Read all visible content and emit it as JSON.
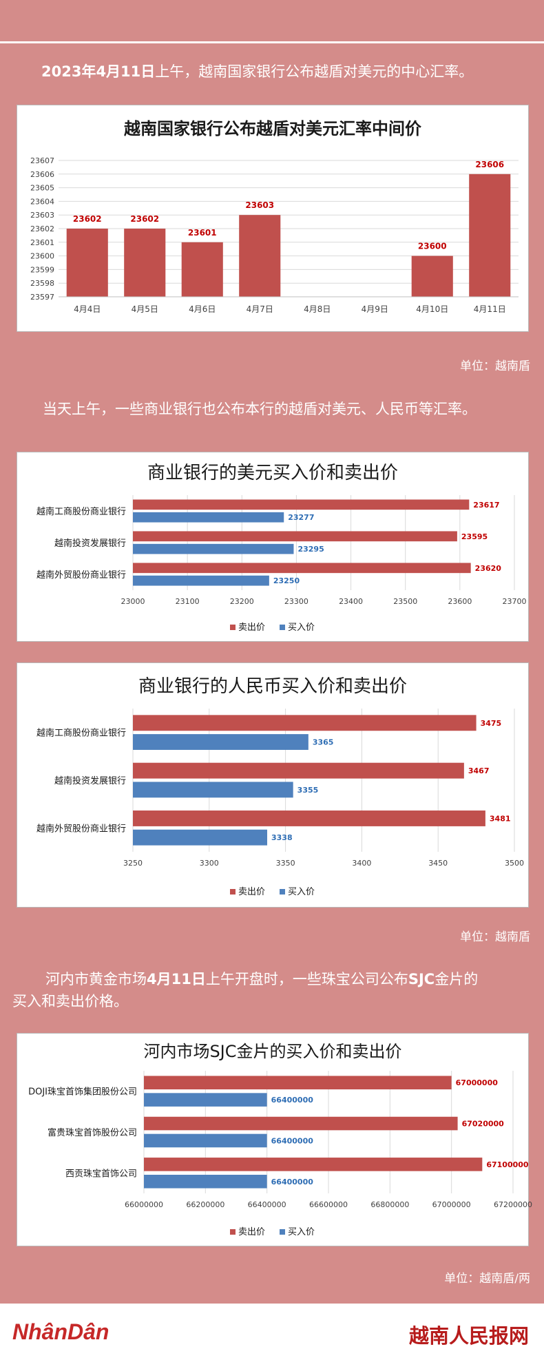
{
  "intro": {
    "date": "2023年4月11日",
    "text": "上午，越南国家银行公布越盾对美元的中心汇率。"
  },
  "para2": "当天上午，一些商业银行也公布本行的越盾对美元、人民币等汇率。",
  "para3": {
    "prefix": "河内市黄金市场",
    "date": "4月11日",
    "mid": "上午开盘时，一些珠宝公司公布",
    "brand": "SJC",
    "line1_end": "金片的",
    "line2": "买入和卖出价格。"
  },
  "units": {
    "rate": "单位：越南盾",
    "bank": "单位：越南盾",
    "gold": "单位：越南盾/两"
  },
  "footer": {
    "logo_left": "NhânDân",
    "logo_right": "越南人民报网"
  },
  "colors": {
    "sell": "#c0504d",
    "buy": "#4f81bd",
    "bg": "#d48c8a"
  },
  "chart_data": [
    {
      "type": "bar",
      "title": "越南国家银行公布越盾对美元汇率中间价",
      "categories": [
        "4月4日",
        "4月5日",
        "4月6日",
        "4月7日",
        "4月8日",
        "4月9日",
        "4月10日",
        "4月11日"
      ],
      "values": [
        23602,
        23602,
        23601,
        23603,
        null,
        null,
        23600,
        23606
      ],
      "ylim": [
        23597,
        23607
      ],
      "yticks": [
        23597,
        23598,
        23599,
        23600,
        23601,
        23602,
        23603,
        23604,
        23605,
        23606,
        23607
      ],
      "grid": true
    },
    {
      "type": "bar",
      "orientation": "horizontal",
      "title": "商业银行的美元买入价和卖出价",
      "categories": [
        "越南工商股份商业银行",
        "越南投资发展银行",
        "越南外贸股份商业银行"
      ],
      "series": [
        {
          "name": "卖出价",
          "values": [
            23617,
            23595,
            23620
          ]
        },
        {
          "name": "买入价",
          "values": [
            23277,
            23295,
            23250
          ]
        }
      ],
      "xlim": [
        23000,
        23700
      ],
      "xticks": [
        23000,
        23100,
        23200,
        23300,
        23400,
        23500,
        23600,
        23700
      ],
      "legend": "bottom"
    },
    {
      "type": "bar",
      "orientation": "horizontal",
      "title": "商业银行的人民币买入价和卖出价",
      "categories": [
        "越南工商股份商业银行",
        "越南投资发展银行",
        "越南外贸股份商业银行"
      ],
      "series": [
        {
          "name": "卖出价",
          "values": [
            3475,
            3467,
            3481
          ]
        },
        {
          "name": "买入价",
          "values": [
            3365,
            3355,
            3338
          ]
        }
      ],
      "xlim": [
        3250,
        3500
      ],
      "xticks": [
        3250,
        3300,
        3350,
        3400,
        3450,
        3500
      ],
      "legend": "bottom"
    },
    {
      "type": "bar",
      "orientation": "horizontal",
      "title": "河内市场SJC金片的买入价和卖出价",
      "categories": [
        "DOJI珠宝首饰集团股份公司",
        "富贵珠宝首饰股份公司",
        "西贡珠宝首饰公司"
      ],
      "series": [
        {
          "name": "卖出价",
          "values": [
            67000000,
            67020000,
            67100000
          ]
        },
        {
          "name": "买入价",
          "values": [
            66400000,
            66400000,
            66400000
          ]
        }
      ],
      "xlim": [
        66000000,
        67200000
      ],
      "xticks": [
        66000000,
        66200000,
        66400000,
        66600000,
        66800000,
        67000000,
        67200000
      ],
      "legend": "bottom"
    }
  ]
}
